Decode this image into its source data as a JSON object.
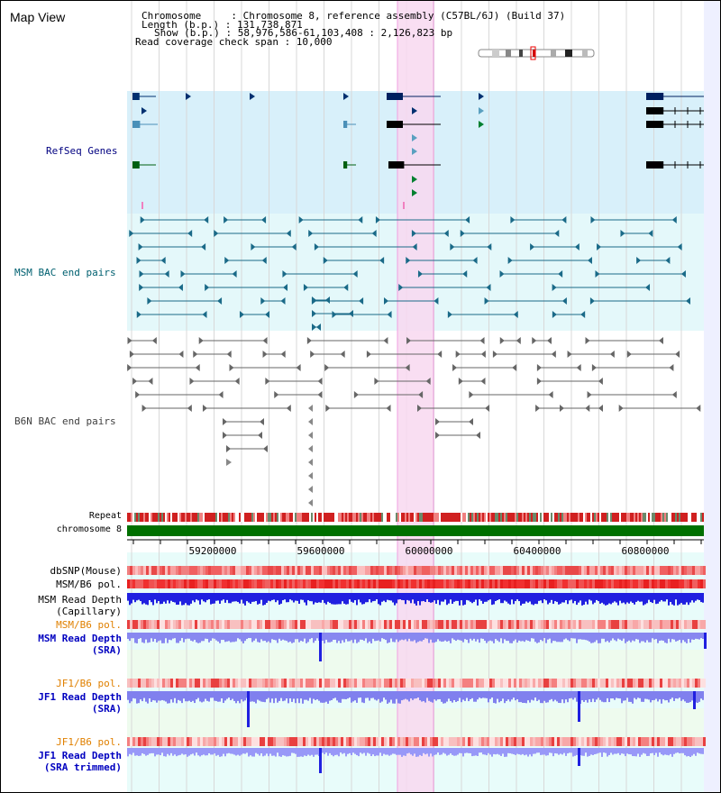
{
  "page": {
    "title": "Map View"
  },
  "info": {
    "chromosome": "Chromosome     : Chromosome 8, reference assembly (C57BL/6J) (Build 37)",
    "length": "Length (b.p.) : 131,738,871",
    "show": "Show (b.p.) : 58,976,586-61,103,408 : 2,126,823 bp",
    "coverage": "Read coverage check span : 10,000"
  },
  "tracks": {
    "refseq": {
      "label": "RefSeq Genes",
      "color": "#000080"
    },
    "msm_bac": {
      "label": "MSM BAC end pairs",
      "color": "#006070"
    },
    "b6n_bac": {
      "label": "B6N BAC end pairs",
      "color": "#404040"
    },
    "repeat": {
      "label": "Repeat"
    },
    "chromosome": {
      "label": "chromosome 8"
    },
    "dbsnp": {
      "label": "dbSNP(Mouse)"
    },
    "msm_b6_pol": {
      "label": "MSM/B6 pol."
    },
    "msm_read_depth_cap": {
      "label": "MSM Read Depth",
      "sub": "(Capillary)"
    },
    "msm_b6_pol_2": {
      "label": "MSM/B6 pol.",
      "color": "#e08000"
    },
    "msm_read_depth_sra": {
      "label": "MSM Read Depth",
      "sub": "(SRA)",
      "color": "#0000c0"
    },
    "jf1_b6_pol": {
      "label": "JF1/B6 pol.",
      "color": "#e08000"
    },
    "jf1_read_depth_sra": {
      "label": "JF1 Read Depth",
      "sub": "(SRA)",
      "color": "#0000c0"
    },
    "jf1_b6_pol_2": {
      "label": "JF1/B6 pol.",
      "color": "#e08000"
    },
    "jf1_read_depth_trim": {
      "label": "JF1 Read Depth",
      "sub": "(SRA trimmed)",
      "color": "#0000c0"
    }
  },
  "axis": {
    "ticks": [
      "59200000",
      "59600000",
      "60000000",
      "60400000",
      "60800000"
    ]
  },
  "colors": {
    "refseq_bg": "#d8f0fa",
    "msm_bg": "#e4f8fa",
    "highlight": "#f8d8f0",
    "gene_dark": "#002060",
    "chrom_band": "#007000"
  }
}
